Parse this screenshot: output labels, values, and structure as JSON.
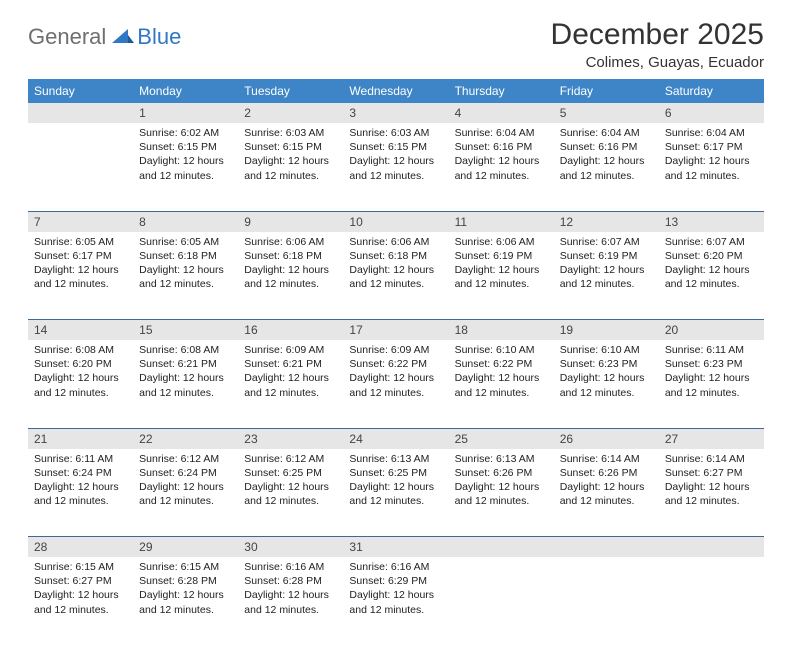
{
  "brand": {
    "part1": "General",
    "part2": "Blue"
  },
  "title": "December 2025",
  "location": "Colimes, Guayas, Ecuador",
  "colors": {
    "header_bg": "#3d85c6",
    "header_text": "#ffffff",
    "daynum_bg": "#e6e6e6",
    "rule": "#3d6a94",
    "brand_gray": "#6f6f6f",
    "brand_blue": "#2f78c4"
  },
  "day_names": [
    "Sunday",
    "Monday",
    "Tuesday",
    "Wednesday",
    "Thursday",
    "Friday",
    "Saturday"
  ],
  "weeks": [
    [
      null,
      {
        "n": "1",
        "sr": "6:02 AM",
        "ss": "6:15 PM",
        "dl": "12 hours and 12 minutes."
      },
      {
        "n": "2",
        "sr": "6:03 AM",
        "ss": "6:15 PM",
        "dl": "12 hours and 12 minutes."
      },
      {
        "n": "3",
        "sr": "6:03 AM",
        "ss": "6:15 PM",
        "dl": "12 hours and 12 minutes."
      },
      {
        "n": "4",
        "sr": "6:04 AM",
        "ss": "6:16 PM",
        "dl": "12 hours and 12 minutes."
      },
      {
        "n": "5",
        "sr": "6:04 AM",
        "ss": "6:16 PM",
        "dl": "12 hours and 12 minutes."
      },
      {
        "n": "6",
        "sr": "6:04 AM",
        "ss": "6:17 PM",
        "dl": "12 hours and 12 minutes."
      }
    ],
    [
      {
        "n": "7",
        "sr": "6:05 AM",
        "ss": "6:17 PM",
        "dl": "12 hours and 12 minutes."
      },
      {
        "n": "8",
        "sr": "6:05 AM",
        "ss": "6:18 PM",
        "dl": "12 hours and 12 minutes."
      },
      {
        "n": "9",
        "sr": "6:06 AM",
        "ss": "6:18 PM",
        "dl": "12 hours and 12 minutes."
      },
      {
        "n": "10",
        "sr": "6:06 AM",
        "ss": "6:18 PM",
        "dl": "12 hours and 12 minutes."
      },
      {
        "n": "11",
        "sr": "6:06 AM",
        "ss": "6:19 PM",
        "dl": "12 hours and 12 minutes."
      },
      {
        "n": "12",
        "sr": "6:07 AM",
        "ss": "6:19 PM",
        "dl": "12 hours and 12 minutes."
      },
      {
        "n": "13",
        "sr": "6:07 AM",
        "ss": "6:20 PM",
        "dl": "12 hours and 12 minutes."
      }
    ],
    [
      {
        "n": "14",
        "sr": "6:08 AM",
        "ss": "6:20 PM",
        "dl": "12 hours and 12 minutes."
      },
      {
        "n": "15",
        "sr": "6:08 AM",
        "ss": "6:21 PM",
        "dl": "12 hours and 12 minutes."
      },
      {
        "n": "16",
        "sr": "6:09 AM",
        "ss": "6:21 PM",
        "dl": "12 hours and 12 minutes."
      },
      {
        "n": "17",
        "sr": "6:09 AM",
        "ss": "6:22 PM",
        "dl": "12 hours and 12 minutes."
      },
      {
        "n": "18",
        "sr": "6:10 AM",
        "ss": "6:22 PM",
        "dl": "12 hours and 12 minutes."
      },
      {
        "n": "19",
        "sr": "6:10 AM",
        "ss": "6:23 PM",
        "dl": "12 hours and 12 minutes."
      },
      {
        "n": "20",
        "sr": "6:11 AM",
        "ss": "6:23 PM",
        "dl": "12 hours and 12 minutes."
      }
    ],
    [
      {
        "n": "21",
        "sr": "6:11 AM",
        "ss": "6:24 PM",
        "dl": "12 hours and 12 minutes."
      },
      {
        "n": "22",
        "sr": "6:12 AM",
        "ss": "6:24 PM",
        "dl": "12 hours and 12 minutes."
      },
      {
        "n": "23",
        "sr": "6:12 AM",
        "ss": "6:25 PM",
        "dl": "12 hours and 12 minutes."
      },
      {
        "n": "24",
        "sr": "6:13 AM",
        "ss": "6:25 PM",
        "dl": "12 hours and 12 minutes."
      },
      {
        "n": "25",
        "sr": "6:13 AM",
        "ss": "6:26 PM",
        "dl": "12 hours and 12 minutes."
      },
      {
        "n": "26",
        "sr": "6:14 AM",
        "ss": "6:26 PM",
        "dl": "12 hours and 12 minutes."
      },
      {
        "n": "27",
        "sr": "6:14 AM",
        "ss": "6:27 PM",
        "dl": "12 hours and 12 minutes."
      }
    ],
    [
      {
        "n": "28",
        "sr": "6:15 AM",
        "ss": "6:27 PM",
        "dl": "12 hours and 12 minutes."
      },
      {
        "n": "29",
        "sr": "6:15 AM",
        "ss": "6:28 PM",
        "dl": "12 hours and 12 minutes."
      },
      {
        "n": "30",
        "sr": "6:16 AM",
        "ss": "6:28 PM",
        "dl": "12 hours and 12 minutes."
      },
      {
        "n": "31",
        "sr": "6:16 AM",
        "ss": "6:29 PM",
        "dl": "12 hours and 12 minutes."
      },
      null,
      null,
      null
    ]
  ],
  "labels": {
    "sunrise": "Sunrise:",
    "sunset": "Sunset:",
    "daylight": "Daylight:"
  }
}
